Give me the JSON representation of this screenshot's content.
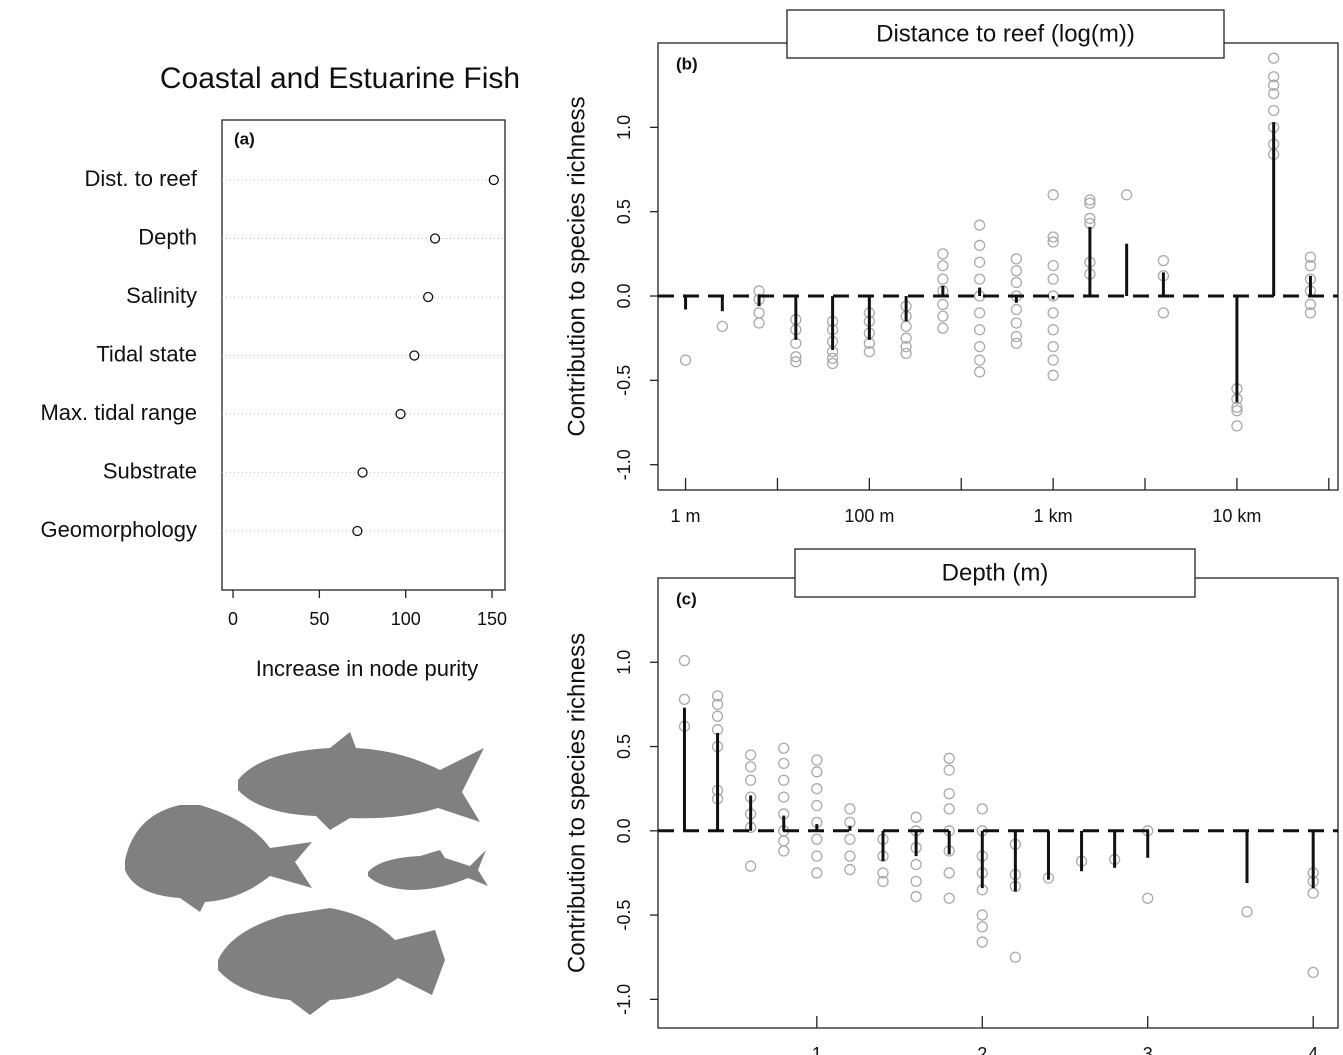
{
  "chart_data": [
    {
      "type": "dot",
      "title": "Coastal and Estuarine Fish",
      "panel_label": "(a)",
      "categories": [
        "Dist. to reef",
        "Depth",
        "Salinity",
        "Tidal state",
        "Max. tidal range",
        "Substrate",
        "Geomorphology"
      ],
      "values": [
        151,
        117,
        113,
        105,
        97,
        75,
        72
      ],
      "xlim": [
        -6.4,
        157.5
      ],
      "xticks": [
        0,
        50,
        100,
        150
      ],
      "xlabel": "Increase in node purity"
    },
    {
      "type": "partial",
      "title": "Distance to reef (log(m))",
      "panel_label": "(b)",
      "ylabel": "Contribution to species richness",
      "x": [
        0,
        0.4,
        0.8,
        1.2,
        1.6,
        2.0,
        2.4,
        2.8,
        3.2,
        3.6,
        4.0,
        4.4,
        4.8,
        5.2,
        6.0,
        6.4,
        6.8
      ],
      "values": [
        -0.08,
        -0.09,
        -0.06,
        -0.26,
        -0.32,
        -0.26,
        -0.15,
        0.06,
        0.05,
        -0.04,
        -0.02,
        0.41,
        0.31,
        0.14,
        -0.63,
        1.03,
        0.12
      ],
      "points": [
        [
          -0.38
        ],
        [
          -0.18
        ],
        [
          0.03,
          -0.02,
          -0.1,
          -0.16
        ],
        [
          -0.14,
          -0.2,
          -0.28,
          -0.36,
          -0.39
        ],
        [
          -0.15,
          -0.2,
          -0.27,
          -0.33,
          -0.37,
          -0.4
        ],
        [
          -0.1,
          -0.15,
          -0.22,
          -0.28,
          -0.33
        ],
        [
          -0.06,
          -0.12,
          -0.18,
          -0.25,
          -0.3,
          -0.34
        ],
        [
          0.25,
          0.18,
          0.1,
          0.03,
          -0.05,
          -0.12,
          -0.19
        ],
        [
          0.42,
          0.3,
          0.2,
          0.1,
          0,
          -0.1,
          -0.2,
          -0.3,
          -0.38,
          -0.45
        ],
        [
          0.22,
          0.15,
          0.08,
          0,
          -0.08,
          -0.16,
          -0.24,
          -0.28
        ],
        [
          0.6,
          0.35,
          0.32,
          0.18,
          0.1,
          0,
          -0.1,
          -0.2,
          -0.3,
          -0.38,
          -0.47
        ],
        [
          0.57,
          0.55,
          0.46,
          0.43,
          0.2,
          0.13
        ],
        [
          0.6
        ],
        [
          0.21,
          0.12,
          -0.1
        ],
        [
          -0.55,
          -0.61,
          -0.66,
          -0.68,
          -0.77
        ],
        [
          1.41,
          1.3,
          1.25,
          1.2,
          1.1,
          1.0,
          0.9,
          0.84
        ],
        [
          0.23,
          0.18,
          0.1,
          0.03,
          -0.05,
          -0.1
        ]
      ],
      "xlim": [
        -0.3,
        7.1
      ],
      "ylim": [
        -1.15,
        1.5
      ],
      "xticks": [
        {
          "value": 0,
          "label": "1 m"
        },
        {
          "value": 1,
          "label": null
        },
        {
          "value": 2,
          "label": "100 m"
        },
        {
          "value": 3,
          "label": null
        },
        {
          "value": 4,
          "label": "1 km"
        },
        {
          "value": 5,
          "label": null
        },
        {
          "value": 6,
          "label": "10 km"
        },
        {
          "value": 7,
          "label": null
        }
      ],
      "yticks": [
        {
          "value": -1,
          "label": "-1.0"
        },
        {
          "value": -0.5,
          "label": "-0.5"
        },
        {
          "value": 0,
          "label": "0.0"
        },
        {
          "value": 0.5,
          "label": "0.5"
        },
        {
          "value": 1,
          "label": "1.0"
        }
      ]
    },
    {
      "type": "partial",
      "title": "Depth (m)",
      "panel_label": "(c)",
      "ylabel": "Contribution to species richness",
      "x": [
        0.2,
        0.4,
        0.6,
        0.8,
        1.0,
        1.2,
        1.4,
        1.6,
        1.8,
        2.0,
        2.2,
        2.4,
        2.6,
        2.8,
        3.0,
        3.6,
        4.0
      ],
      "values": [
        0.73,
        0.58,
        0.21,
        0.09,
        0.04,
        0.03,
        -0.18,
        -0.15,
        -0.14,
        -0.34,
        -0.36,
        -0.29,
        -0.24,
        -0.22,
        -0.16,
        -0.31,
        -0.34
      ],
      "points": [
        [
          1.01,
          0.78,
          0.62
        ],
        [
          0.8,
          0.75,
          0.68,
          0.6,
          0.5,
          0.24,
          0.19
        ],
        [
          0.45,
          0.38,
          0.3,
          0.2,
          0.1,
          0.02,
          -0.21
        ],
        [
          0.49,
          0.4,
          0.3,
          0.2,
          0.1,
          0,
          -0.06,
          -0.12
        ],
        [
          0.42,
          0.35,
          0.25,
          0.15,
          0.05,
          -0.05,
          -0.15,
          -0.25
        ],
        [
          0.13,
          0.05,
          -0.05,
          -0.15,
          -0.23
        ],
        [
          -0.05,
          -0.15,
          -0.25,
          -0.3
        ],
        [
          0.08,
          0,
          -0.1,
          -0.2,
          -0.3,
          -0.39
        ],
        [
          0.43,
          0.36,
          0.22,
          0.13,
          0,
          -0.12,
          -0.25,
          -0.4
        ],
        [
          0.13,
          0,
          -0.15,
          -0.25,
          -0.35,
          -0.5,
          -0.57,
          -0.66
        ],
        [
          -0.08,
          -0.26,
          -0.33,
          -0.75
        ],
        [
          -0.28
        ],
        [
          -0.18
        ],
        [
          -0.17
        ],
        [
          0,
          -0.4
        ],
        [
          -0.48
        ],
        [
          -0.25,
          -0.3,
          -0.37,
          -0.84
        ]
      ],
      "xlim": [
        0.04,
        4.15
      ],
      "ylim": [
        -1.17,
        1.5
      ],
      "xticks": [
        1,
        2,
        3,
        4
      ],
      "yticks": [
        {
          "value": -1,
          "label": "-1.0"
        },
        {
          "value": -0.5,
          "label": "-0.5"
        },
        {
          "value": 0,
          "label": "0.0"
        },
        {
          "value": 0.5,
          "label": "0.5"
        },
        {
          "value": 1,
          "label": "1.0"
        }
      ]
    }
  ]
}
